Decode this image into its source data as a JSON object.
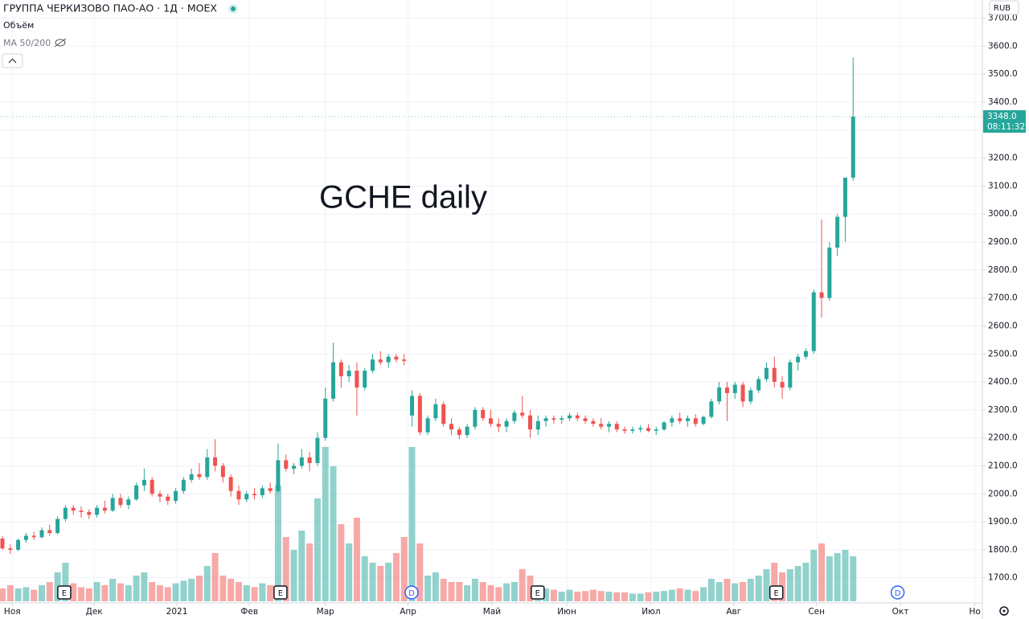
{
  "chart_data": {
    "type": "candlestick",
    "title": "ГРУППА ЧЕРКИЗОВО ПАО-АО · 1Д · MOEX",
    "volume_label": "Объём",
    "ma_label": "MA 50/200",
    "annotation": "GCHE daily",
    "currency": "RUB",
    "last_price": {
      "value": 3348,
      "label": "3348.0"
    },
    "countdown": "08:11:32",
    "up_color": "#26a69a",
    "down_color": "#ef5350",
    "grid": true,
    "xlim": [
      0,
      248
    ],
    "ylim": [
      1610,
      3765
    ],
    "volume_lim": [
      0,
      250
    ],
    "yticks": [
      {
        "value": 1700,
        "label": "1700.0"
      },
      {
        "value": 1800,
        "label": "1800.0"
      },
      {
        "value": 1900,
        "label": "1900.0"
      },
      {
        "value": 2000,
        "label": "2000.0"
      },
      {
        "value": 2100,
        "label": "2100.0"
      },
      {
        "value": 2200,
        "label": "2200.0"
      },
      {
        "value": 2300,
        "label": "2300.0"
      },
      {
        "value": 2400,
        "label": "2400.0"
      },
      {
        "value": 2500,
        "label": "2500.0"
      },
      {
        "value": 2600,
        "label": "2600.0"
      },
      {
        "value": 2700,
        "label": "2700.0"
      },
      {
        "value": 2800,
        "label": "2800.0"
      },
      {
        "value": 2900,
        "label": "2900.0"
      },
      {
        "value": 3000,
        "label": "3000.0"
      },
      {
        "value": 3100,
        "label": "3100.0"
      },
      {
        "value": 3200,
        "label": "3200.0"
      },
      {
        "value": 3300,
        "label": "3300.0"
      },
      {
        "value": 3400,
        "label": "3400.0"
      },
      {
        "value": 3500,
        "label": "3500.0"
      },
      {
        "value": 3600,
        "label": "3600.0"
      },
      {
        "value": 3700,
        "label": "3700.0"
      }
    ],
    "xticks": [
      {
        "value": 2.5,
        "label": "Ноя"
      },
      {
        "value": 23.3,
        "label": "Дек"
      },
      {
        "value": 44.3,
        "label": "2021"
      },
      {
        "value": 62.7,
        "label": "Фев"
      },
      {
        "value": 82,
        "label": "Мар"
      },
      {
        "value": 103,
        "label": "Апр"
      },
      {
        "value": 124.3,
        "label": "Май"
      },
      {
        "value": 143.3,
        "label": "Июн"
      },
      {
        "value": 164.7,
        "label": "Июл"
      },
      {
        "value": 185.7,
        "label": "Авг"
      },
      {
        "value": 206.7,
        "label": "Сен"
      },
      {
        "value": 228,
        "label": "Окт"
      },
      {
        "value": 246.9,
        "label": "Но"
      }
    ],
    "events": [
      {
        "label": "E",
        "x": 15.7
      },
      {
        "label": "E",
        "x": 70.6
      },
      {
        "label": "D",
        "x": 103.9
      },
      {
        "label": "E",
        "x": 135.9
      },
      {
        "label": "E",
        "x": 196.5
      },
      {
        "label": "D",
        "x": 227.3
      }
    ],
    "x": [
      0,
      2,
      4,
      6,
      8,
      10,
      12,
      14,
      16,
      18,
      20,
      22,
      24,
      26,
      28,
      30,
      32,
      34,
      36,
      38,
      40,
      42,
      44,
      46,
      48,
      50,
      52,
      54,
      56,
      58,
      60,
      62,
      64,
      66,
      68,
      70,
      72,
      74,
      76,
      78,
      80,
      82,
      84,
      86,
      88,
      90,
      92,
      94,
      96,
      98,
      100,
      102,
      104,
      106,
      108,
      110,
      112,
      114,
      116,
      118,
      120,
      122,
      124,
      126,
      128,
      130,
      132,
      134,
      136,
      138,
      140,
      142,
      144,
      146,
      148,
      150,
      152,
      154,
      156,
      158,
      160,
      162,
      164,
      166,
      168,
      170,
      172,
      174,
      176,
      178,
      180,
      182,
      184,
      186,
      188,
      190,
      192,
      194,
      196,
      198,
      200,
      202,
      204,
      206,
      208,
      210,
      212,
      214,
      216
    ],
    "open": [
      1840,
      1805,
      1800,
      1835,
      1850,
      1845,
      1870,
      1860,
      1910,
      1950,
      1940,
      1935,
      1925,
      1950,
      1940,
      1985,
      1960,
      1980,
      2030,
      2050,
      2000,
      1990,
      1975,
      2010,
      2050,
      2070,
      2060,
      2130,
      2100,
      2060,
      2010,
      1980,
      2000,
      1995,
      2020,
      2010,
      2120,
      2090,
      2100,
      2130,
      2110,
      2200,
      2340,
      2470,
      2420,
      2440,
      2380,
      2440,
      2480,
      2470,
      2490,
      2480,
      2280,
      2350,
      2220,
      2270,
      2320,
      2250,
      2230,
      2210,
      2240,
      2300,
      2270,
      2250,
      2240,
      2260,
      2290,
      2280,
      2230,
      2260,
      2270,
      2265,
      2270,
      2280,
      2270,
      2260,
      2250,
      2240,
      2250,
      2230,
      2225,
      2230,
      2235,
      2225,
      2230,
      2255,
      2270,
      2260,
      2270,
      2250,
      2275,
      2330,
      2380,
      2360,
      2390,
      2330,
      2370,
      2410,
      2450,
      2400,
      2380,
      2470,
      2490,
      2510,
      2720,
      2700,
      2880,
      2990,
      3130
    ],
    "high": [
      1850,
      1820,
      1840,
      1860,
      1865,
      1880,
      1890,
      1920,
      1960,
      1960,
      1955,
      1945,
      1960,
      1975,
      2000,
      2000,
      1990,
      2040,
      2090,
      2060,
      2010,
      2000,
      2020,
      2060,
      2090,
      2110,
      2160,
      2195,
      2110,
      2070,
      2030,
      2010,
      2020,
      2030,
      2040,
      2180,
      2140,
      2110,
      2160,
      2150,
      2220,
      2380,
      2540,
      2480,
      2460,
      2470,
      2450,
      2500,
      2510,
      2500,
      2500,
      2500,
      2370,
      2360,
      2280,
      2340,
      2330,
      2270,
      2240,
      2250,
      2310,
      2310,
      2300,
      2270,
      2270,
      2300,
      2350,
      2300,
      2280,
      2280,
      2280,
      2280,
      2290,
      2290,
      2280,
      2270,
      2270,
      2260,
      2260,
      2240,
      2240,
      2245,
      2250,
      2240,
      2260,
      2280,
      2290,
      2280,
      2285,
      2280,
      2340,
      2400,
      2400,
      2400,
      2400,
      2380,
      2420,
      2470,
      2490,
      2420,
      2480,
      2500,
      2520,
      2730,
      2980,
      2900,
      3000,
      3130,
      3560
    ],
    "low": [
      1800,
      1785,
      1795,
      1825,
      1835,
      1840,
      1850,
      1855,
      1900,
      1925,
      1915,
      1910,
      1915,
      1930,
      1935,
      1950,
      1945,
      1975,
      2010,
      1990,
      1970,
      1960,
      1965,
      2000,
      2040,
      2050,
      2050,
      2080,
      2040,
      1990,
      1960,
      1970,
      1980,
      1985,
      2000,
      2005,
      2080,
      2070,
      2090,
      2080,
      2100,
      2190,
      2330,
      2380,
      2400,
      2280,
      2370,
      2430,
      2460,
      2450,
      2470,
      2460,
      2240,
      2210,
      2210,
      2260,
      2240,
      2210,
      2195,
      2200,
      2230,
      2260,
      2240,
      2220,
      2220,
      2250,
      2270,
      2200,
      2210,
      2240,
      2250,
      2250,
      2260,
      2260,
      2250,
      2240,
      2230,
      2220,
      2220,
      2215,
      2215,
      2220,
      2220,
      2210,
      2225,
      2240,
      2250,
      2240,
      2240,
      2245,
      2270,
      2320,
      2260,
      2340,
      2310,
      2320,
      2360,
      2400,
      2380,
      2340,
      2370,
      2440,
      2480,
      2500,
      2630,
      2690,
      2850,
      2900,
      3120
    ],
    "close": [
      1805,
      1800,
      1835,
      1850,
      1845,
      1870,
      1860,
      1910,
      1950,
      1940,
      1935,
      1925,
      1950,
      1940,
      1985,
      1960,
      1980,
      2030,
      2050,
      2000,
      1990,
      1975,
      2010,
      2050,
      2070,
      2060,
      2130,
      2100,
      2060,
      2010,
      1980,
      2000,
      1995,
      2020,
      2010,
      2120,
      2090,
      2100,
      2130,
      2110,
      2200,
      2340,
      2470,
      2420,
      2440,
      2380,
      2440,
      2480,
      2470,
      2490,
      2480,
      2475,
      2350,
      2220,
      2270,
      2320,
      2250,
      2230,
      2210,
      2240,
      2300,
      2270,
      2250,
      2240,
      2260,
      2290,
      2280,
      2230,
      2260,
      2270,
      2265,
      2270,
      2280,
      2270,
      2260,
      2250,
      2240,
      2250,
      2230,
      2225,
      2230,
      2235,
      2225,
      2230,
      2255,
      2270,
      2260,
      2270,
      2250,
      2275,
      2330,
      2380,
      2360,
      2390,
      2330,
      2370,
      2410,
      2450,
      2400,
      2380,
      2470,
      2490,
      2510,
      2720,
      2700,
      2880,
      2990,
      3130,
      3348
    ],
    "volume": [
      20,
      25,
      20,
      22,
      18,
      25,
      30,
      45,
      60,
      28,
      22,
      20,
      30,
      25,
      35,
      28,
      25,
      40,
      45,
      30,
      25,
      22,
      28,
      32,
      35,
      40,
      55,
      75,
      40,
      35,
      30,
      25,
      22,
      28,
      25,
      180,
      100,
      80,
      110,
      90,
      160,
      240,
      210,
      120,
      90,
      130,
      70,
      60,
      55,
      60,
      75,
      100,
      240,
      90,
      40,
      45,
      35,
      30,
      30,
      25,
      35,
      30,
      25,
      22,
      28,
      30,
      50,
      40,
      25,
      20,
      18,
      15,
      18,
      15,
      16,
      18,
      16,
      15,
      14,
      14,
      12,
      12,
      14,
      15,
      16,
      18,
      20,
      18,
      16,
      22,
      35,
      30,
      35,
      28,
      30,
      35,
      40,
      50,
      60,
      45,
      50,
      55,
      60,
      80,
      90,
      70,
      75,
      80,
      70
    ]
  }
}
